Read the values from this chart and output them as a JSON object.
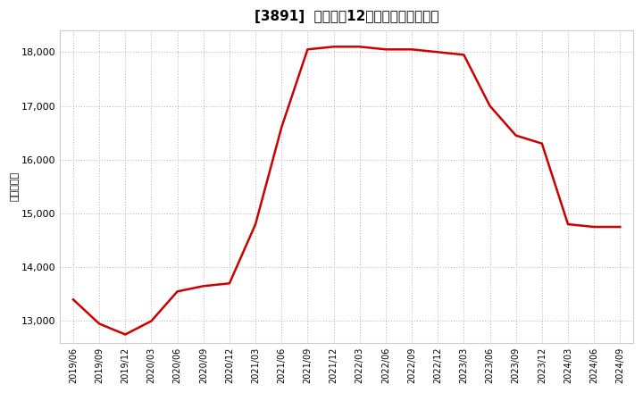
{
  "title": "[3891]  売上高の12か月移動合計の推移",
  "ylabel": "（百万円）",
  "line_color": "#cc0000",
  "background_color": "#ffffff",
  "grid_color": "#b0b0b0",
  "dates": [
    "2019/06",
    "2019/09",
    "2019/12",
    "2020/03",
    "2020/06",
    "2020/09",
    "2020/12",
    "2021/03",
    "2021/06",
    "2021/09",
    "2021/12",
    "2022/03",
    "2022/06",
    "2022/09",
    "2022/12",
    "2023/03",
    "2023/06",
    "2023/09",
    "2023/12",
    "2024/03",
    "2024/06",
    "2024/09"
  ],
  "values": [
    13400,
    12950,
    12750,
    13000,
    13550,
    13650,
    13700,
    14800,
    16600,
    18050,
    18100,
    18100,
    18050,
    18050,
    18000,
    17950,
    17000,
    16450,
    16300,
    14800,
    14750,
    14750
  ],
  "yticks": [
    13000,
    14000,
    15000,
    16000,
    17000,
    18000
  ],
  "ylim": [
    12600,
    18400
  ],
  "title_fontsize": 11,
  "tick_fontsize": 8,
  "ylabel_fontsize": 8
}
